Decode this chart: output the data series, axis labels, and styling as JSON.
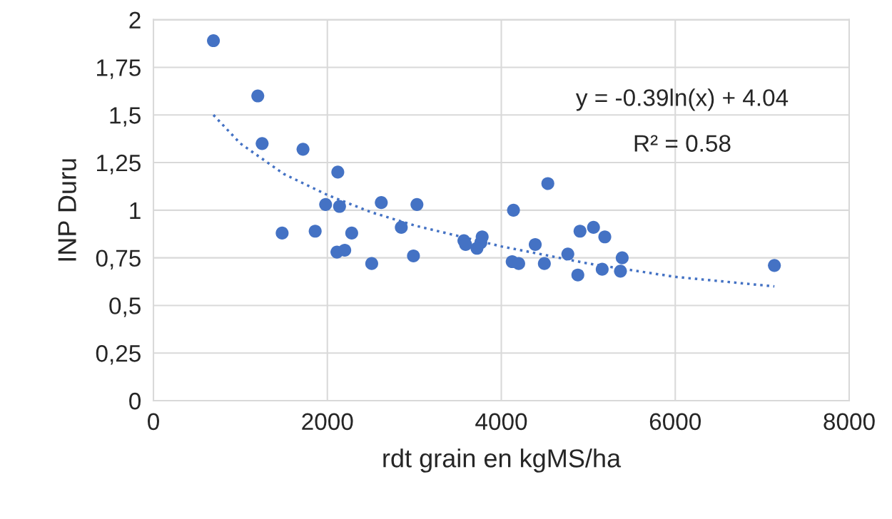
{
  "chart_data": {
    "type": "scatter",
    "xlabel": "rdt grain en kgMS/ha",
    "ylabel": "INP Duru",
    "xlim": [
      0,
      8000
    ],
    "xticks": [
      0,
      2000,
      4000,
      6000,
      8000
    ],
    "ylim": [
      0,
      2
    ],
    "yticks": [
      0,
      {
        "value": 0.25,
        "label": "0,25"
      },
      {
        "value": 0.5,
        "label": "0,5"
      },
      {
        "value": 0.75,
        "label": "0,75"
      },
      1,
      {
        "value": 1.25,
        "label": "1,25"
      },
      {
        "value": 1.5,
        "label": "1,5"
      },
      {
        "value": 1.75,
        "label": "1,75"
      },
      2
    ],
    "grid": true,
    "marker": "circle",
    "series": [
      {
        "color": "#4472c4",
        "x": [
          690,
          1200,
          1250,
          1720,
          2120,
          1480,
          1980,
          2140,
          1860,
          2280,
          2110,
          2200,
          2510,
          2620,
          2850,
          3030,
          2990,
          3570,
          3590,
          3720,
          3765,
          3780,
          4125,
          4200,
          4140,
          4535,
          4390,
          4495,
          4765,
          4880,
          4905,
          5060,
          5190,
          5160,
          5390,
          5370,
          7140
        ],
        "values": [
          1.89,
          1.6,
          1.35,
          1.32,
          1.2,
          0.88,
          1.03,
          1.02,
          0.89,
          0.88,
          0.78,
          0.79,
          0.72,
          1.04,
          0.91,
          1.03,
          0.76,
          0.84,
          0.82,
          0.8,
          0.83,
          0.86,
          0.73,
          0.72,
          1.0,
          1.14,
          0.82,
          0.72,
          0.77,
          0.66,
          0.89,
          0.91,
          0.86,
          0.69,
          0.75,
          0.68,
          0.71
        ]
      },
      {
        "type": "line",
        "color": "#4472c4",
        "line_style": "dotted",
        "marker": "none",
        "x": [
          690,
          1000,
          1500,
          2000,
          2500,
          3000,
          4000,
          5000,
          6000,
          7140
        ],
        "values": [
          1.5,
          1.35,
          1.19,
          1.08,
          0.99,
          0.92,
          0.81,
          0.72,
          0.65,
          0.6
        ]
      }
    ],
    "annotations": [
      "y = -0.39ln(x) + 4.04",
      "R² = 0.58"
    ]
  }
}
